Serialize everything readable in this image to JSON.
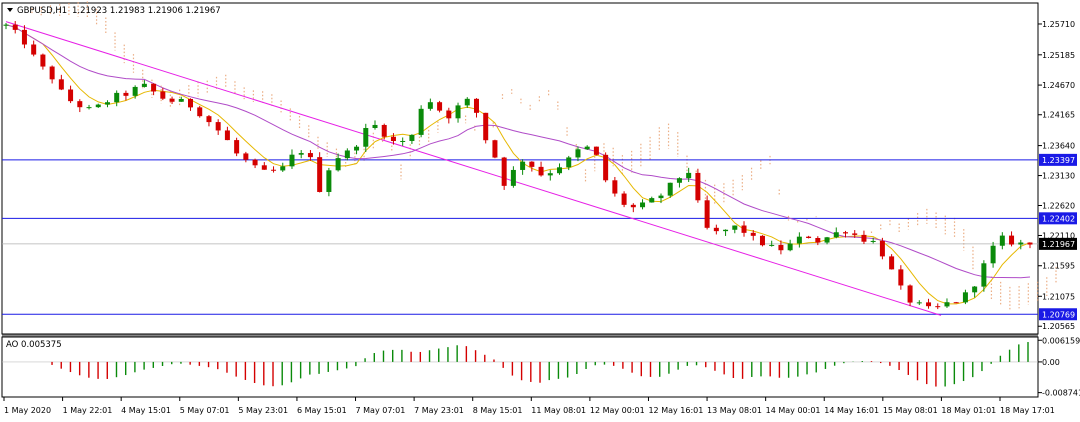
{
  "header": {
    "symbol_title": "GBPUSD,H1",
    "ohlc": "1.21923 1.21983 1.21906 1.21967"
  },
  "indicator": {
    "label": "AO 0.005375"
  },
  "colors": {
    "bull": "#0a8a0a",
    "bear": "#d40000",
    "ma_fast": "#e6b800",
    "ma_slow": "#b04cc8",
    "channel": "#e620e6",
    "hline": "#1a1ae6",
    "cloud_a": "#e8a070",
    "cloud_b": "#c8a0d8",
    "price_tag": "#1a1ae6",
    "current_tag": "#000000"
  },
  "chart_data": [
    {
      "type": "candlestick",
      "symbol": "GBPUSD",
      "timeframe": "H1",
      "ylim": [
        1.2045,
        1.2605
      ],
      "y_ticks": [
        "1.25710",
        "1.25185",
        "1.24670",
        "1.24165",
        "1.23640",
        "1.23130",
        "1.22620",
        "1.22110",
        "1.21595",
        "1.21075",
        "1.20565"
      ],
      "x_ticks": [
        "1 May 2020",
        "1 May 22:01",
        "4 May 15:01",
        "5 May 07:01",
        "5 May 23:01",
        "6 May 15:01",
        "7 May 07:01",
        "7 May 23:01",
        "8 May 15:01",
        "11 May 08:01",
        "12 May 00:01",
        "12 May 16:01",
        "13 May 08:01",
        "14 May 00:01",
        "14 May 16:01",
        "15 May 08:01",
        "18 May 01:01",
        "18 May 17:01"
      ],
      "horizontal_levels": [
        {
          "value": 1.23397,
          "label": "1.23397"
        },
        {
          "value": 1.22402,
          "label": "1.22402"
        },
        {
          "value": 1.20769,
          "label": "1.20769"
        }
      ],
      "current_price": {
        "value": 1.21967,
        "label": "1.21967"
      },
      "channel_line": {
        "from": [
          0,
          1.2575
        ],
        "to": [
          1.0,
          1.2075
        ]
      },
      "close_path": [
        1.2568,
        1.2555,
        1.254,
        1.2515,
        1.2495,
        1.248,
        1.2455,
        1.244,
        1.2432,
        1.2425,
        1.243,
        1.244,
        1.2448,
        1.2452,
        1.246,
        1.2465,
        1.2455,
        1.2445,
        1.244,
        1.2438,
        1.2432,
        1.242,
        1.2405,
        1.239,
        1.2372,
        1.235,
        1.2338,
        1.2325,
        1.2318,
        1.232,
        1.2325,
        1.2345,
        1.2355,
        1.234,
        1.229,
        1.2325,
        1.2345,
        1.2352,
        1.2368,
        1.239,
        1.2398,
        1.2385,
        1.237,
        1.2372,
        1.238,
        1.243,
        1.244,
        1.2425,
        1.2415,
        1.243,
        1.244,
        1.242,
        1.2375,
        1.2345,
        1.23,
        1.232,
        1.234,
        1.233,
        1.2315,
        1.232,
        1.233,
        1.234,
        1.2355,
        1.236,
        1.2345,
        1.2305,
        1.228,
        1.2265,
        1.2258,
        1.2262,
        1.227,
        1.228,
        1.2295,
        1.231,
        1.232,
        1.2265,
        1.2222,
        1.2215,
        1.222,
        1.2225,
        1.2218,
        1.2205,
        1.2198,
        1.219,
        1.2188,
        1.2195,
        1.2205,
        1.221,
        1.2202,
        1.2208,
        1.2215,
        1.222,
        1.2212,
        1.2205,
        1.22,
        1.218,
        1.215,
        1.212,
        1.21,
        1.2092,
        1.2085,
        1.2088,
        1.2095,
        1.21,
        1.211,
        1.213,
        1.216,
        1.219,
        1.2205,
        1.22,
        1.2197,
        1.2196
      ]
    },
    {
      "type": "bar",
      "name": "AO",
      "value_label": "0.005375",
      "ylim": [
        -0.0097,
        0.0068
      ],
      "y_ticks": [
        "0.006159",
        "0.00",
        "-0.008741"
      ],
      "bar_count": 112
    }
  ]
}
